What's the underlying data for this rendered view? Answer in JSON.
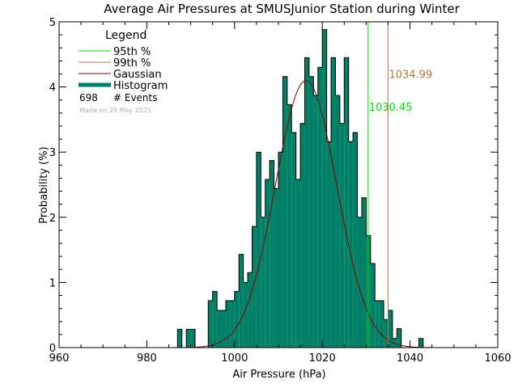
{
  "chart_data": {
    "type": "bar",
    "title": "Average Air Pressures at SMUSJunior Station during Winter",
    "xlabel": "Air Pressure (hPa)",
    "ylabel": "Probability (%)",
    "xlim": [
      960,
      1060
    ],
    "ylim": [
      0,
      5
    ],
    "xticks": [
      "960",
      "980",
      "1000",
      "1020",
      "1040",
      "1060"
    ],
    "yticks": [
      "0",
      "1",
      "2",
      "3",
      "4",
      "5"
    ],
    "bin_width": 1,
    "histogram": {
      "x": [
        987,
        988,
        989,
        990,
        991,
        992,
        993,
        994,
        995,
        996,
        997,
        998,
        999,
        1000,
        1001,
        1002,
        1003,
        1004,
        1005,
        1006,
        1007,
        1008,
        1009,
        1010,
        1011,
        1012,
        1013,
        1014,
        1015,
        1016,
        1017,
        1018,
        1019,
        1020,
        1021,
        1022,
        1023,
        1024,
        1025,
        1026,
        1027,
        1028,
        1029,
        1030,
        1031,
        1032,
        1033,
        1034,
        1035,
        1036,
        1037,
        1038,
        1039,
        1040,
        1041,
        1042
      ],
      "values": [
        0.28,
        0,
        0.28,
        0.28,
        0,
        0,
        0,
        0.72,
        0.86,
        0.57,
        0.57,
        0.72,
        0.72,
        0.86,
        1.43,
        1.0,
        1.15,
        1.86,
        3.0,
        2.0,
        2.58,
        2.87,
        2.44,
        3.0,
        4.16,
        3.73,
        3.3,
        2.58,
        3.44,
        4.45,
        4.16,
        3.87,
        4.3,
        4.88,
        3.16,
        4.45,
        3.87,
        3.44,
        4.45,
        3.16,
        3.3,
        2.0,
        2.3,
        1.72,
        1.29,
        0.72,
        0.72,
        0.43,
        0.57,
        0.14,
        0.29,
        0,
        0,
        0,
        0,
        0.14
      ]
    },
    "gaussian": {
      "name": "Gaussian",
      "mean": 1016.3,
      "sd": 7.0,
      "peak": 4.1
    },
    "percentiles": [
      {
        "name": "95th %",
        "value": 1030.45,
        "label": "1030.45",
        "color": "#00dd00",
        "label_y": 3.7
      },
      {
        "name": "99th %",
        "value": 1034.99,
        "label": "1034.99",
        "color": "#b87333",
        "label_y": 4.2
      }
    ],
    "legend": {
      "title": "Legend",
      "placement": "top-left",
      "entries": [
        {
          "label": "95th %",
          "color": "#00dd00"
        },
        {
          "label": "99th %",
          "color": "#b87333"
        },
        {
          "label": "Gaussian",
          "color": "#8b0000"
        },
        {
          "label": "Histogram",
          "color": "#008066"
        }
      ],
      "events_count": "698",
      "events_label": "# Events",
      "made_on": "Made on 29 May 2025"
    },
    "colors": {
      "bars": "#008066",
      "bar_edge": "#000000",
      "gaussian": "#8b0000"
    }
  }
}
